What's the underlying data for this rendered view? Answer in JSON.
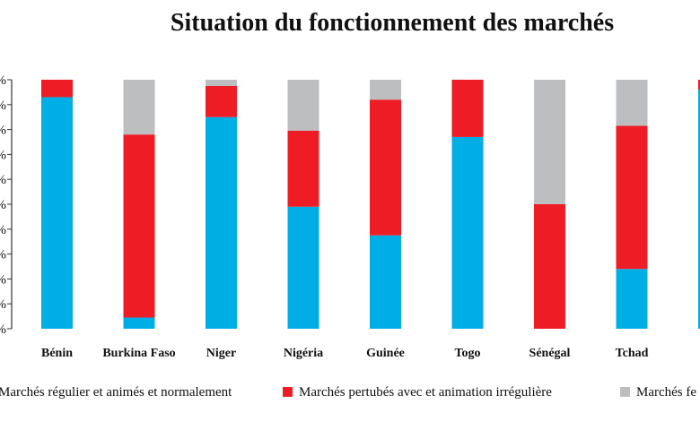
{
  "chart_data": {
    "type": "bar",
    "stacked": true,
    "title": "Situation du fonctionnement des marchés",
    "categories": [
      "Bénin",
      "Burkina Faso",
      "Niger",
      "Nigéria",
      "Guinée",
      "Togo",
      "Sénégal",
      "Tchad",
      ""
    ],
    "series": [
      {
        "name": "Marchés régulier et animés et normalement",
        "color": "#00aee6",
        "values": [
          93,
          4.5,
          85,
          49,
          37.5,
          77,
          0,
          24,
          96
        ]
      },
      {
        "name": "Marchés pertubés avec et animation irrégulière",
        "color": "#ee1c25",
        "values": [
          7,
          73.5,
          12.5,
          30.5,
          54.5,
          23,
          50,
          57.5,
          4
        ]
      },
      {
        "name": "Marchés  fe",
        "color": "#bcbec0",
        "values": [
          0,
          22,
          2.5,
          20.5,
          8,
          0,
          50,
          18.5,
          0
        ]
      }
    ],
    "y_tick_labels": [
      "%",
      "%",
      "%",
      "%",
      "%",
      "%",
      "%",
      "%",
      "%",
      "%",
      "%"
    ],
    "ylim": [
      0,
      100
    ],
    "grid": false,
    "legend_position": "bottom"
  }
}
